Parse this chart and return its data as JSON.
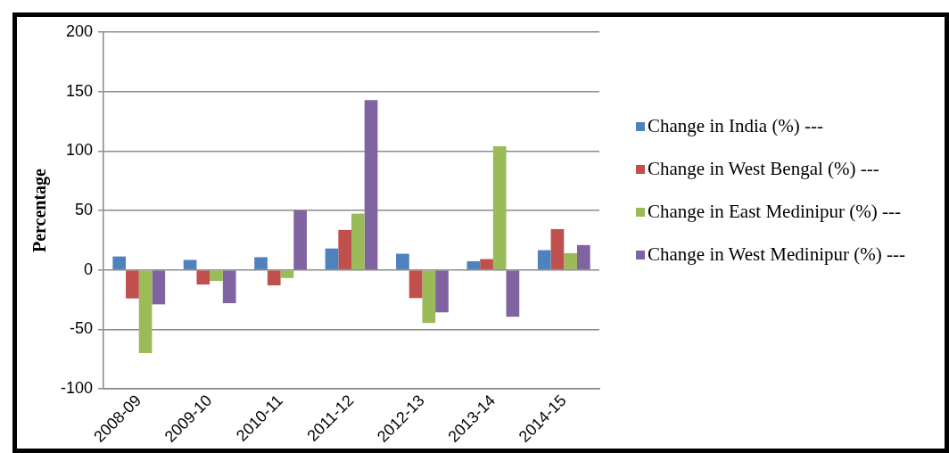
{
  "chart_data": {
    "type": "bar",
    "ylabel": "Percentage",
    "categories": [
      "2008-09",
      "2009-10",
      "2010-11",
      "2011-12",
      "2012-13",
      "2013-14",
      "2014-15"
    ],
    "series": [
      {
        "name": "Change in India (%) ---",
        "color": "#4f81bd",
        "values": [
          11.3,
          8.4,
          10.7,
          18,
          13.6,
          7.3,
          16.6
        ]
      },
      {
        "name": "Change in West Bengal (%) ---",
        "color": "#c0504d",
        "values": [
          -24,
          -12.3,
          -13,
          33.6,
          -23.7,
          9.1,
          34.3
        ]
      },
      {
        "name": "Change in East Medinipur (%) ---",
        "color": "#9bbb59",
        "values": [
          -70,
          -9.3,
          -6.8,
          47.3,
          -44.6,
          104,
          14.1
        ]
      },
      {
        "name": "Change in West Medinipur (%) ---",
        "color": "#8064a2",
        "values": [
          -29,
          -28,
          50,
          142.8,
          -35.7,
          -39.4,
          20.9
        ]
      }
    ],
    "ylim": [
      -100,
      200
    ],
    "yticks": [
      -100,
      -50,
      0,
      50,
      100,
      150,
      200
    ],
    "grid": "y",
    "legend": "right"
  }
}
